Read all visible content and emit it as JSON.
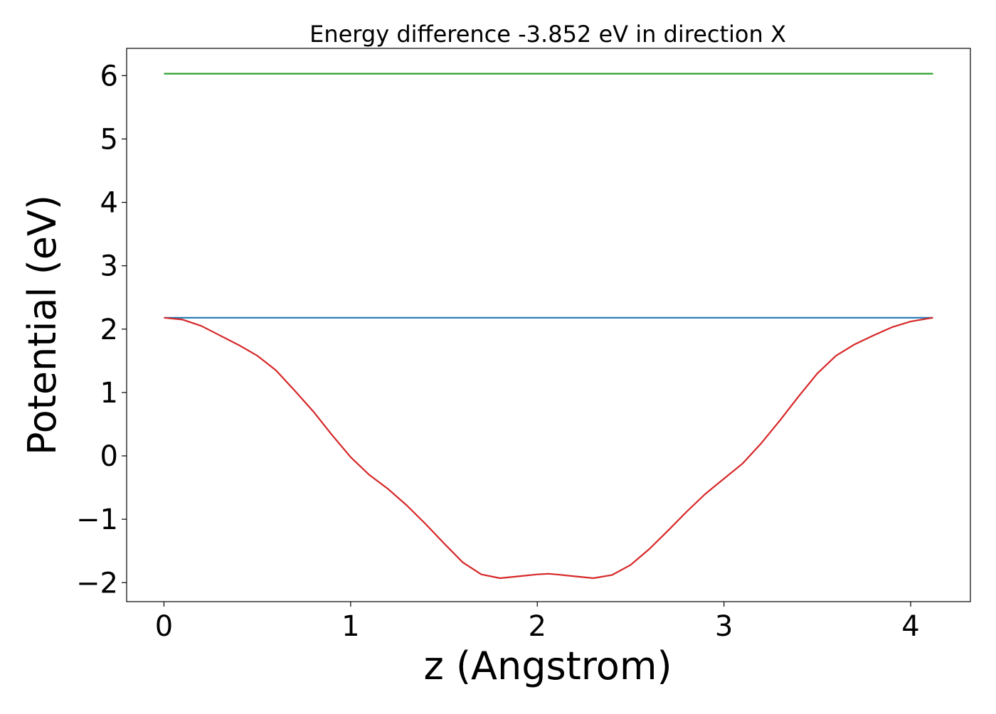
{
  "chart_data": {
    "type": "line",
    "title": "Energy difference -3.852 eV in direction X",
    "xlabel": "z (Angstrom)",
    "ylabel": "Potential (eV)",
    "xlim": [
      -0.2,
      4.32
    ],
    "ylim": [
      -2.3,
      6.43
    ],
    "xticks": [
      0,
      1,
      2,
      3,
      4
    ],
    "xtick_labels": [
      "0",
      "1",
      "2",
      "3",
      "4"
    ],
    "yticks": [
      -2,
      -1,
      0,
      1,
      2,
      3,
      4,
      5,
      6
    ],
    "ytick_labels": [
      "−2",
      "−1",
      "0",
      "1",
      "2",
      "3",
      "4",
      "5",
      "6"
    ],
    "grid": false,
    "series": [
      {
        "color": "#2ca02c",
        "x": [
          0,
          4.12
        ],
        "y": [
          6.03,
          6.03
        ]
      },
      {
        "color": "#1f77b4",
        "x": [
          0,
          4.12
        ],
        "y": [
          2.18,
          2.18
        ]
      },
      {
        "color": "#d62728",
        "x": [
          0,
          0.1,
          0.2,
          0.3,
          0.4,
          0.5,
          0.6,
          0.7,
          0.8,
          0.9,
          1.0,
          1.1,
          1.2,
          1.3,
          1.4,
          1.5,
          1.6,
          1.7,
          1.8,
          1.9,
          2.0,
          2.06,
          2.1,
          2.2,
          2.3,
          2.4,
          2.5,
          2.6,
          2.7,
          2.8,
          2.9,
          3.0,
          3.1,
          3.2,
          3.3,
          3.4,
          3.5,
          3.6,
          3.7,
          3.8,
          3.9,
          4.0,
          4.1,
          4.12
        ],
        "y": [
          2.18,
          2.15,
          2.05,
          1.9,
          1.75,
          1.58,
          1.35,
          1.03,
          0.7,
          0.33,
          -0.02,
          -0.3,
          -0.52,
          -0.78,
          -1.07,
          -1.38,
          -1.68,
          -1.87,
          -1.93,
          -1.9,
          -1.87,
          -1.86,
          -1.87,
          -1.9,
          -1.93,
          -1.88,
          -1.72,
          -1.47,
          -1.18,
          -0.88,
          -0.6,
          -0.36,
          -0.12,
          0.2,
          0.56,
          0.94,
          1.3,
          1.58,
          1.76,
          1.9,
          2.03,
          2.12,
          2.17,
          2.18
        ]
      }
    ]
  }
}
